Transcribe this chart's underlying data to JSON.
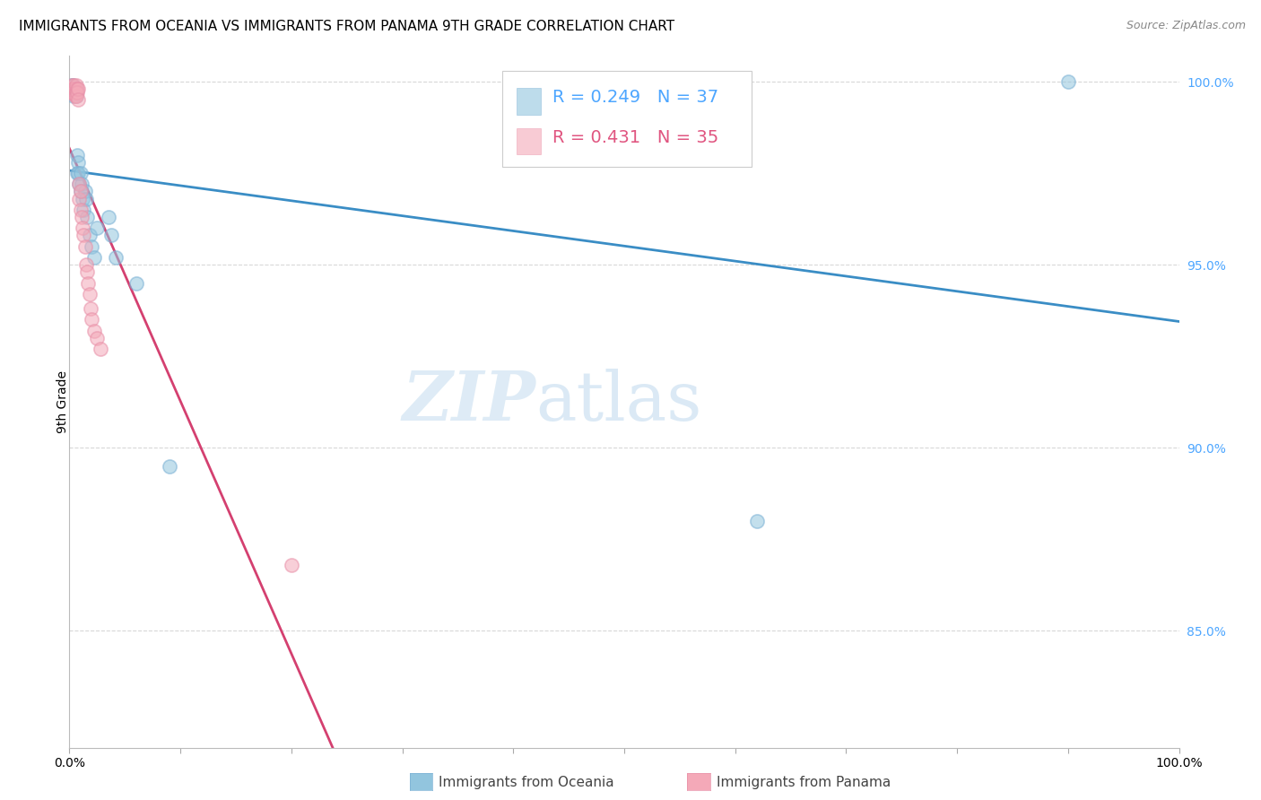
{
  "title": "IMMIGRANTS FROM OCEANIA VS IMMIGRANTS FROM PANAMA 9TH GRADE CORRELATION CHART",
  "source": "Source: ZipAtlas.com",
  "ylabel": "9th Grade",
  "xlim": [
    0.0,
    1.0
  ],
  "ylim": [
    0.818,
    1.007
  ],
  "yticks": [
    0.85,
    0.9,
    0.95,
    1.0
  ],
  "ytick_labels": [
    "85.0%",
    "90.0%",
    "95.0%",
    "100.0%"
  ],
  "xticks": [
    0.0,
    0.1,
    0.2,
    0.3,
    0.4,
    0.5,
    0.6,
    0.7,
    0.8,
    0.9,
    1.0
  ],
  "xtick_labels": [
    "0.0%",
    "",
    "",
    "",
    "",
    "",
    "",
    "",
    "",
    "",
    "100.0%"
  ],
  "R1": "0.249",
  "N1": "37",
  "R2": "0.431",
  "N2": "35",
  "oceania_color": "#92c5de",
  "panama_color": "#f4a9b8",
  "oceania_edge": "#7ab0d4",
  "panama_edge": "#e890a8",
  "trendline_oceania_color": "#3a8dc5",
  "trendline_panama_color": "#d44070",
  "grid_color": "#d8d8d8",
  "background_color": "#ffffff",
  "legend_text_color": "#4da6ff",
  "legend_r2_color": "#e05580",
  "watermark_zip_color": "#c8dff0",
  "watermark_atlas_color": "#b8d4ec",
  "oceania_x": [
    0.001,
    0.002,
    0.002,
    0.003,
    0.003,
    0.003,
    0.004,
    0.004,
    0.004,
    0.005,
    0.005,
    0.006,
    0.006,
    0.007,
    0.007,
    0.008,
    0.008,
    0.009,
    0.01,
    0.01,
    0.011,
    0.012,
    0.013,
    0.014,
    0.015,
    0.016,
    0.018,
    0.02,
    0.022,
    0.025,
    0.035,
    0.038,
    0.042,
    0.06,
    0.09,
    0.62,
    0.9
  ],
  "oceania_y": [
    0.997,
    0.998,
    0.999,
    0.998,
    0.997,
    0.999,
    0.997,
    0.998,
    0.996,
    0.997,
    0.998,
    0.996,
    0.998,
    0.975,
    0.98,
    0.978,
    0.975,
    0.972,
    0.975,
    0.97,
    0.972,
    0.968,
    0.965,
    0.97,
    0.968,
    0.963,
    0.958,
    0.955,
    0.952,
    0.96,
    0.963,
    0.958,
    0.952,
    0.945,
    0.895,
    0.88,
    1.0
  ],
  "panama_x": [
    0.001,
    0.002,
    0.002,
    0.003,
    0.003,
    0.004,
    0.004,
    0.005,
    0.005,
    0.005,
    0.006,
    0.006,
    0.006,
    0.007,
    0.007,
    0.008,
    0.008,
    0.009,
    0.009,
    0.01,
    0.01,
    0.011,
    0.012,
    0.013,
    0.014,
    0.015,
    0.016,
    0.017,
    0.018,
    0.019,
    0.02,
    0.022,
    0.025,
    0.028,
    0.2
  ],
  "panama_y": [
    0.998,
    0.999,
    0.997,
    0.998,
    0.997,
    0.999,
    0.998,
    0.997,
    0.996,
    0.998,
    0.999,
    0.997,
    0.996,
    0.998,
    0.997,
    0.998,
    0.995,
    0.972,
    0.968,
    0.97,
    0.965,
    0.963,
    0.96,
    0.958,
    0.955,
    0.95,
    0.948,
    0.945,
    0.942,
    0.938,
    0.935,
    0.932,
    0.93,
    0.927,
    0.868
  ],
  "title_fontsize": 11,
  "tick_label_fontsize": 10,
  "legend_fontsize": 14,
  "source_fontsize": 9,
  "watermark_fontsize_zip": 55,
  "watermark_fontsize_atlas": 55
}
